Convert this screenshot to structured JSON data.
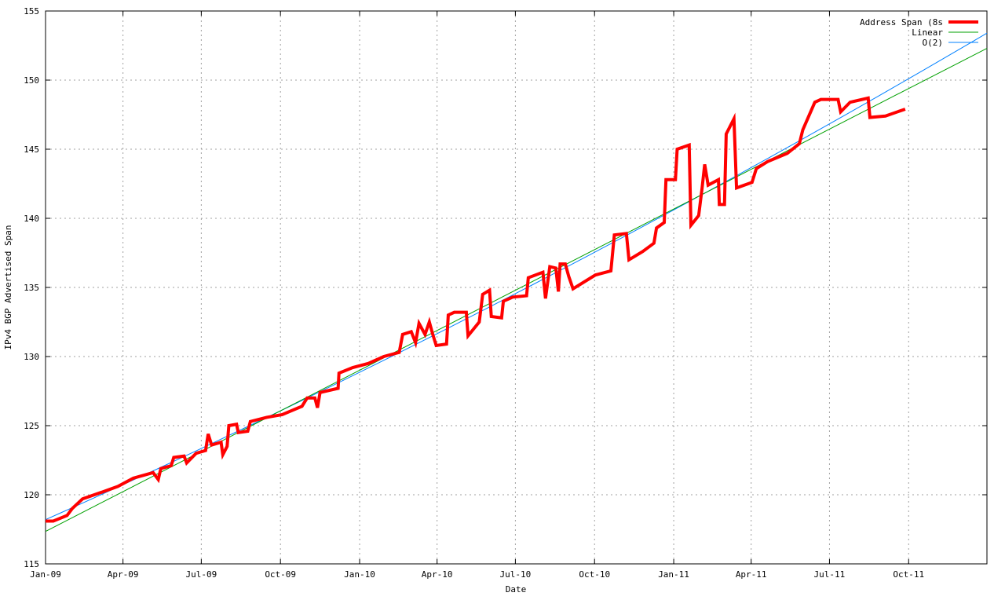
{
  "chart_data": {
    "type": "line",
    "title": "",
    "xlabel": "Date",
    "ylabel": "IPv4 BGP Advertised Span",
    "xlim": [
      "2009-01-01",
      "2011-12-31"
    ],
    "ylim": [
      115,
      155
    ],
    "grid": true,
    "legend_position": "top-right",
    "x_ticks": [
      {
        "date": "2009-01-01",
        "label": "Jan-09"
      },
      {
        "date": "2009-04-01",
        "label": "Apr-09"
      },
      {
        "date": "2009-07-01",
        "label": "Jul-09"
      },
      {
        "date": "2009-10-01",
        "label": "Oct-09"
      },
      {
        "date": "2010-01-01",
        "label": "Jan-10"
      },
      {
        "date": "2010-04-01",
        "label": "Apr-10"
      },
      {
        "date": "2010-07-01",
        "label": "Jul-10"
      },
      {
        "date": "2010-10-01",
        "label": "Oct-10"
      },
      {
        "date": "2011-01-01",
        "label": "Jan-11"
      },
      {
        "date": "2011-04-01",
        "label": "Apr-11"
      },
      {
        "date": "2011-07-01",
        "label": "Jul-11"
      },
      {
        "date": "2011-10-01",
        "label": "Oct-11"
      }
    ],
    "y_ticks": [
      115,
      120,
      125,
      130,
      135,
      140,
      145,
      150,
      155
    ],
    "series": [
      {
        "name": "Address Span (8s",
        "color": "#ff0000",
        "points": [
          [
            "2009-01-01",
            118.1
          ],
          [
            "2009-01-10",
            118.1
          ],
          [
            "2009-01-26",
            118.5
          ],
          [
            "2009-02-01",
            119.0
          ],
          [
            "2009-02-13",
            119.7
          ],
          [
            "2009-03-08",
            120.2
          ],
          [
            "2009-03-26",
            120.6
          ],
          [
            "2009-04-13",
            121.2
          ],
          [
            "2009-05-06",
            121.6
          ],
          [
            "2009-05-12",
            121.1
          ],
          [
            "2009-05-15",
            121.9
          ],
          [
            "2009-05-27",
            122.1
          ],
          [
            "2009-05-30",
            122.7
          ],
          [
            "2009-06-11",
            122.8
          ],
          [
            "2009-06-14",
            122.3
          ],
          [
            "2009-06-25",
            123.0
          ],
          [
            "2009-07-06",
            123.2
          ],
          [
            "2009-07-09",
            124.4
          ],
          [
            "2009-07-13",
            123.6
          ],
          [
            "2009-07-24",
            123.8
          ],
          [
            "2009-07-26",
            122.9
          ],
          [
            "2009-07-31",
            123.5
          ],
          [
            "2009-08-02",
            125.0
          ],
          [
            "2009-08-11",
            125.1
          ],
          [
            "2009-08-13",
            124.5
          ],
          [
            "2009-08-24",
            124.6
          ],
          [
            "2009-08-27",
            125.3
          ],
          [
            "2009-09-15",
            125.6
          ],
          [
            "2009-10-03",
            125.8
          ],
          [
            "2009-10-26",
            126.4
          ],
          [
            "2009-11-01",
            127.0
          ],
          [
            "2009-11-10",
            127.0
          ],
          [
            "2009-11-13",
            126.3
          ],
          [
            "2009-11-16",
            127.4
          ],
          [
            "2009-12-07",
            127.7
          ],
          [
            "2009-12-08",
            128.8
          ],
          [
            "2009-12-24",
            129.2
          ],
          [
            "2010-01-11",
            129.5
          ],
          [
            "2010-01-29",
            130.0
          ],
          [
            "2010-02-16",
            130.3
          ],
          [
            "2010-02-20",
            131.6
          ],
          [
            "2010-03-02",
            131.8
          ],
          [
            "2010-03-07",
            131.0
          ],
          [
            "2010-03-11",
            132.4
          ],
          [
            "2010-03-18",
            131.6
          ],
          [
            "2010-03-23",
            132.5
          ],
          [
            "2010-03-27",
            131.6
          ],
          [
            "2010-03-31",
            130.8
          ],
          [
            "2010-04-12",
            130.9
          ],
          [
            "2010-04-14",
            133.0
          ],
          [
            "2010-04-21",
            133.2
          ],
          [
            "2010-05-05",
            133.2
          ],
          [
            "2010-05-07",
            131.5
          ],
          [
            "2010-05-20",
            132.5
          ],
          [
            "2010-05-24",
            134.5
          ],
          [
            "2010-06-01",
            134.8
          ],
          [
            "2010-06-03",
            132.9
          ],
          [
            "2010-06-15",
            132.8
          ],
          [
            "2010-06-17",
            134.0
          ],
          [
            "2010-06-28",
            134.3
          ],
          [
            "2010-07-14",
            134.4
          ],
          [
            "2010-07-16",
            135.7
          ],
          [
            "2010-08-02",
            136.1
          ],
          [
            "2010-08-05",
            134.2
          ],
          [
            "2010-08-10",
            136.5
          ],
          [
            "2010-08-17",
            136.4
          ],
          [
            "2010-08-20",
            134.7
          ],
          [
            "2010-08-22",
            136.7
          ],
          [
            "2010-08-28",
            136.7
          ],
          [
            "2010-09-01",
            135.8
          ],
          [
            "2010-09-06",
            134.9
          ],
          [
            "2010-10-02",
            135.9
          ],
          [
            "2010-10-20",
            136.2
          ],
          [
            "2010-10-24",
            138.8
          ],
          [
            "2010-11-07",
            138.9
          ],
          [
            "2010-11-10",
            137.0
          ],
          [
            "2010-11-26",
            137.6
          ],
          [
            "2010-12-09",
            138.2
          ],
          [
            "2010-12-12",
            139.3
          ],
          [
            "2010-12-21",
            139.7
          ],
          [
            "2010-12-23",
            142.8
          ],
          [
            "2011-01-03",
            142.8
          ],
          [
            "2011-01-05",
            145.0
          ],
          [
            "2011-01-19",
            145.3
          ],
          [
            "2011-01-21",
            139.5
          ],
          [
            "2011-01-30",
            140.2
          ],
          [
            "2011-02-03",
            142.2
          ],
          [
            "2011-02-06",
            143.9
          ],
          [
            "2011-02-10",
            142.4
          ],
          [
            "2011-02-22",
            142.8
          ],
          [
            "2011-02-23",
            141.0
          ],
          [
            "2011-03-01",
            141.0
          ],
          [
            "2011-03-03",
            146.1
          ],
          [
            "2011-03-12",
            147.2
          ],
          [
            "2011-03-15",
            142.2
          ],
          [
            "2011-04-02",
            142.6
          ],
          [
            "2011-04-07",
            143.6
          ],
          [
            "2011-04-20",
            144.1
          ],
          [
            "2011-05-13",
            144.7
          ],
          [
            "2011-05-27",
            145.4
          ],
          [
            "2011-05-31",
            146.4
          ],
          [
            "2011-06-14",
            148.4
          ],
          [
            "2011-06-21",
            148.6
          ],
          [
            "2011-07-11",
            148.6
          ],
          [
            "2011-07-14",
            147.7
          ],
          [
            "2011-07-25",
            148.4
          ],
          [
            "2011-08-15",
            148.7
          ],
          [
            "2011-08-17",
            147.3
          ],
          [
            "2011-09-04",
            147.4
          ],
          [
            "2011-09-27",
            147.9
          ]
        ]
      },
      {
        "name": "Linear",
        "color": "#00a000",
        "points": [
          [
            "2009-01-01",
            117.35
          ],
          [
            "2011-12-31",
            152.3
          ]
        ]
      },
      {
        "name": "O(2)",
        "color": "#0080ff",
        "points": [
          [
            "2009-01-01",
            118.2
          ],
          [
            "2010-07-01",
            134.55
          ],
          [
            "2011-12-31",
            153.4
          ]
        ]
      }
    ]
  }
}
